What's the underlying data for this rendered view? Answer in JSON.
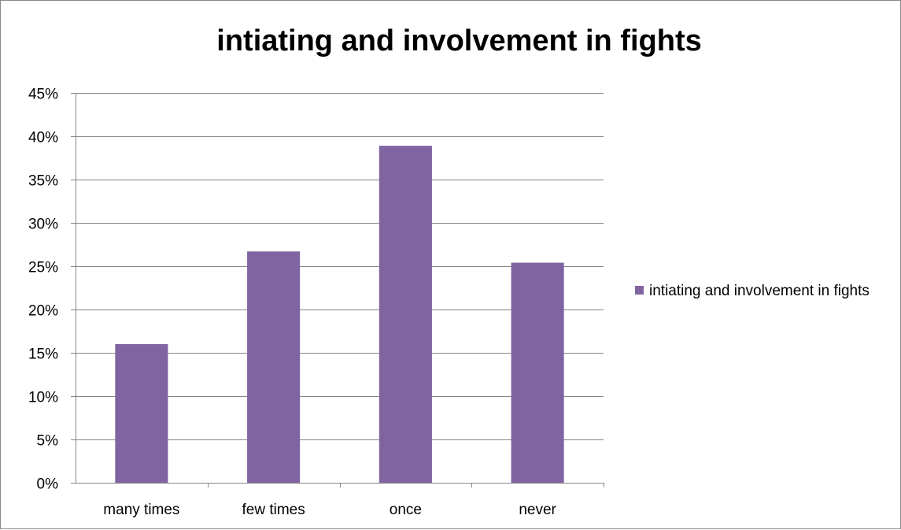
{
  "chart_data": {
    "type": "bar",
    "title": "intiating and involvement in fights",
    "categories": [
      "many times",
      "few times",
      "once",
      "never"
    ],
    "series": [
      {
        "name": "intiating and involvement in fights",
        "values": [
          16,
          26.7,
          38.9,
          25.4
        ],
        "color": "#8064A2"
      }
    ],
    "ylim": [
      0,
      45
    ],
    "ytick_step": 5,
    "ytick_suffix": "%",
    "grid": true,
    "legend_position": "right"
  }
}
